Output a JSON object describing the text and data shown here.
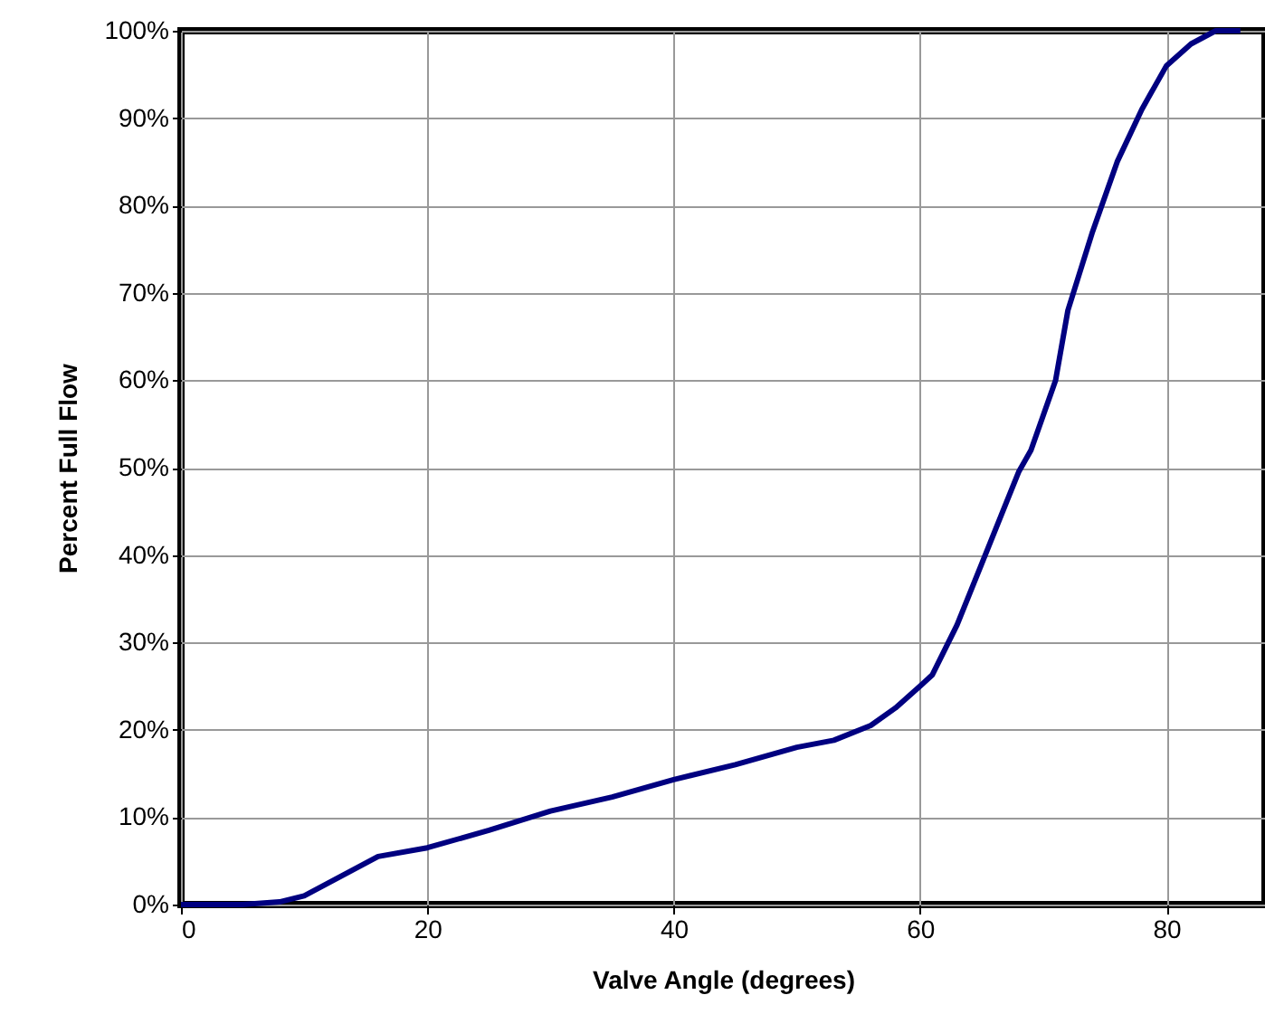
{
  "chart_data": {
    "type": "line",
    "xlabel": "Valve Angle (degrees)",
    "ylabel": "Percent Full Flow",
    "x": [
      0,
      5,
      8,
      10,
      12,
      14,
      16,
      20,
      25,
      30,
      35,
      40,
      45,
      50,
      53,
      56,
      58,
      60,
      61,
      63,
      65,
      67,
      68,
      69,
      71,
      72,
      74,
      76,
      78,
      80,
      82,
      84,
      86
    ],
    "series": [
      {
        "color": "#000080",
        "values": [
          0,
          0,
          0.3,
          1,
          2.5,
          4,
          5.5,
          6.5,
          8.5,
          10.7,
          12.3,
          14.3,
          16,
          18,
          18.8,
          20.5,
          22.5,
          25,
          26.3,
          32,
          39,
          46,
          49.5,
          52,
          60,
          68,
          77,
          85,
          91,
          96,
          98.5,
          100,
          100
        ]
      }
    ],
    "xlim": [
      0,
      88
    ],
    "xticks": [
      0,
      20,
      40,
      60,
      80
    ],
    "ylim": [
      0,
      100
    ],
    "yticks": [
      {
        "value": 0,
        "label": "0%"
      },
      {
        "value": 10,
        "label": "10%"
      },
      {
        "value": 20,
        "label": "20%"
      },
      {
        "value": 30,
        "label": "30%"
      },
      {
        "value": 40,
        "label": "40%"
      },
      {
        "value": 50,
        "label": "50%"
      },
      {
        "value": 60,
        "label": "60%"
      },
      {
        "value": 70,
        "label": "70%"
      },
      {
        "value": 80,
        "label": "80%"
      },
      {
        "value": 90,
        "label": "90%"
      },
      {
        "value": 100,
        "label": "100%"
      }
    ],
    "grid": true,
    "marker": "none",
    "line_style": "solid"
  }
}
